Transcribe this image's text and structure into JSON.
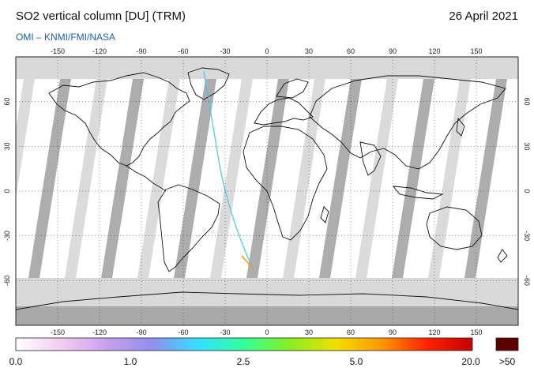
{
  "header": {
    "title": "SO2 vertical column [DU] (TRM)",
    "date": "26 April 2021",
    "source": "OMI  –  KNMI/FMI/NASA"
  },
  "map": {
    "projection": "equirectangular",
    "lon_ticks": [
      "-150",
      "-120",
      "-90",
      "-60",
      "-30",
      "0",
      "30",
      "60",
      "90",
      "120",
      "150"
    ],
    "lat_ticks": [
      "60",
      "30",
      "0",
      "-30",
      "-60"
    ],
    "colors": {
      "no_data": "#d9d9d9",
      "orbit_gap": "#a9a9a9",
      "coast": "#111111",
      "grid": "#333333"
    }
  },
  "colorbar": {
    "labels": [
      "0.0",
      "1.0",
      "2.5",
      "5.0",
      "20.0"
    ],
    "overflow_label": ">50",
    "overflow_color": "#5c0000",
    "gradient": [
      "#ffffff",
      "#f2ccf2",
      "#c9a0ee",
      "#8f8fee",
      "#33e0ff",
      "#33ff99",
      "#88ee22",
      "#f0e000",
      "#ff9900",
      "#ff2200",
      "#c40000"
    ]
  }
}
